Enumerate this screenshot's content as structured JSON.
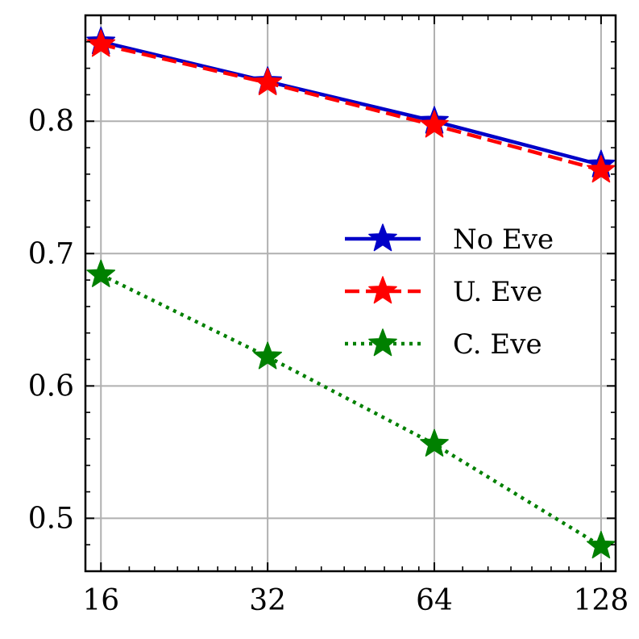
{
  "chart_data": {
    "type": "line",
    "title": "",
    "xlabel": "",
    "ylabel": "",
    "x": [
      16,
      32,
      64,
      128
    ],
    "x_tick_labels": [
      "16",
      "32",
      "64",
      "128"
    ],
    "x_scale": "log2",
    "xlim": [
      15.0,
      136.0
    ],
    "y_ticks": [
      0.5,
      0.6,
      0.7,
      0.8
    ],
    "y_tick_labels": [
      "0.5",
      "0.6",
      "0.7",
      "0.8"
    ],
    "ylim": [
      0.46,
      0.88
    ],
    "grid": true,
    "legend_position": "center-right",
    "series": [
      {
        "name": "No Eve",
        "values": [
          0.86,
          0.83,
          0.8,
          0.767
        ],
        "color": "#0000c8",
        "line_style": "solid",
        "marker": "star"
      },
      {
        "name": "U. Eve",
        "values": [
          0.858,
          0.829,
          0.797,
          0.763
        ],
        "color": "#ff0000",
        "line_style": "dashed",
        "marker": "star"
      },
      {
        "name": "C. Eve",
        "values": [
          0.684,
          0.622,
          0.556,
          0.479
        ],
        "color": "#008000",
        "line_style": "dotted",
        "marker": "star"
      }
    ]
  }
}
